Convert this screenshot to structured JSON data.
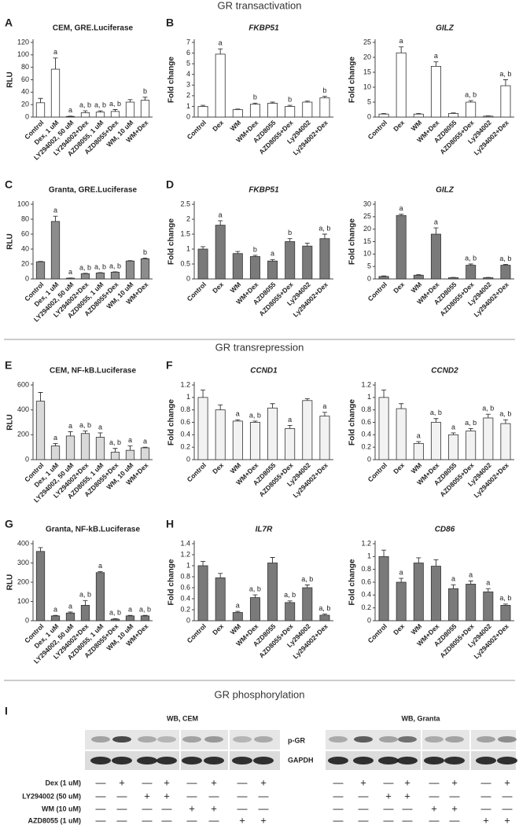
{
  "sections": [
    "GR transactivation",
    "GR transrepression",
    "GR phosphorylation"
  ],
  "chart_data": [
    {
      "type": "bar",
      "letter": "A",
      "title": "CEM, GRE.Luciferase",
      "title_italic": false,
      "ylabel": "RLU",
      "color": "#ffffff",
      "categories": [
        "Control",
        "Dex, 1 uM",
        "LY294002, 50 uM",
        "LY294002+Dex",
        "AZD8055, 1 uM",
        "AZD8055+Dex",
        "WM, 10 uM",
        "WM+Dex"
      ],
      "values": [
        23,
        77,
        1,
        7,
        8,
        9,
        24,
        27
      ],
      "errors": [
        7,
        18,
        0.5,
        3,
        2,
        3,
        4,
        5
      ],
      "annotations": [
        null,
        "a",
        "a",
        "a, b",
        "a, b",
        "a, b",
        null,
        "b"
      ],
      "ylim": [
        0,
        120
      ],
      "yticks": [
        0,
        20,
        40,
        60,
        80,
        100,
        120
      ]
    },
    {
      "type": "bar",
      "letter": "B",
      "title": "FKBP51",
      "title_italic": true,
      "ylabel": "Fold change",
      "color": "#ffffff",
      "categories": [
        "Control",
        "Dex",
        "WM",
        "WM+Dex",
        "AZD8055",
        "AZD8055+Dex",
        "Ly294002",
        "Ly294002+Dex"
      ],
      "values": [
        1,
        5.9,
        0.7,
        1.2,
        1.3,
        1,
        1.4,
        1.8
      ],
      "errors": [
        0.1,
        0.5,
        0.05,
        0.1,
        0.1,
        0.1,
        0.1,
        0.15
      ],
      "annotations": [
        null,
        "a",
        null,
        "b",
        null,
        "b",
        null,
        "b"
      ],
      "ylim": [
        0,
        7
      ],
      "yticks": [
        0,
        1,
        2,
        3,
        4,
        5,
        6,
        7
      ]
    },
    {
      "type": "bar",
      "letter": null,
      "title": "GILZ",
      "title_italic": true,
      "ylabel": "Fold change",
      "color": "#ffffff",
      "categories": [
        "Control",
        "Dex",
        "WM",
        "WM+Dex",
        "AZD8055",
        "AZD8055+Dex",
        "Ly294002",
        "Ly294002+Dex"
      ],
      "values": [
        1,
        21.5,
        1,
        17,
        1.2,
        5,
        0.3,
        10.5
      ],
      "errors": [
        0.2,
        2,
        0.2,
        1.5,
        0.2,
        0.5,
        0.1,
        2
      ],
      "annotations": [
        null,
        "a",
        null,
        "a",
        null,
        "a, b",
        null,
        "a, b"
      ],
      "ylim": [
        0,
        25
      ],
      "yticks": [
        0,
        5,
        10,
        15,
        20,
        25
      ]
    },
    {
      "type": "bar",
      "letter": "C",
      "title": "Granta, GRE.Luciferase",
      "title_italic": false,
      "ylabel": "RLU",
      "color": "#8c8c8c",
      "categories": [
        "Control",
        "Dex, 1 uM",
        "LY294002, 50 uM",
        "LY294002+Dex",
        "AZD8055, 1 uM",
        "AZD8055+Dex",
        "WM, 10 uM",
        "WM+Dex"
      ],
      "values": [
        23,
        77,
        1,
        7,
        8,
        9,
        24,
        27
      ],
      "errors": [
        0.5,
        7,
        0.3,
        0.5,
        0.5,
        0.5,
        0.5,
        1
      ],
      "annotations": [
        null,
        "a",
        "a",
        "a, b",
        "a, b",
        "a, b",
        null,
        "b"
      ],
      "ylim": [
        0,
        100
      ],
      "yticks": [
        0,
        20,
        40,
        60,
        80,
        100
      ]
    },
    {
      "type": "bar",
      "letter": "D",
      "title": "FKBP51",
      "title_italic": true,
      "ylabel": "Fold change",
      "color": "#7a7a7a",
      "categories": [
        "Control",
        "Dex",
        "WM",
        "WM+Dex",
        "AZD8055",
        "AZD8055+Dex",
        "Ly294002",
        "Ly294002+Dex"
      ],
      "values": [
        1,
        1.8,
        0.85,
        0.75,
        0.6,
        1.25,
        1.1,
        1.35
      ],
      "errors": [
        0.08,
        0.15,
        0.07,
        0.04,
        0.05,
        0.1,
        0.1,
        0.15
      ],
      "annotations": [
        null,
        "a",
        null,
        "b",
        "a",
        "b",
        null,
        "a, b"
      ],
      "ylim": [
        0,
        2.5
      ],
      "yticks": [
        0,
        0.5,
        1,
        1.5,
        2,
        2.5
      ]
    },
    {
      "type": "bar",
      "letter": null,
      "title": "GILZ",
      "title_italic": true,
      "ylabel": "Fold change",
      "color": "#7a7a7a",
      "categories": [
        "Control",
        "Dex",
        "WM",
        "WM+Dex",
        "AZD8055",
        "AZD8055+Dex",
        "Ly294002",
        "Ly294002+Dex"
      ],
      "values": [
        1,
        25.5,
        1.5,
        18,
        0.5,
        5.5,
        0.5,
        5.5
      ],
      "errors": [
        0.2,
        0.5,
        0.2,
        2.5,
        0.1,
        0.5,
        0.1,
        0.3
      ],
      "annotations": [
        null,
        "a",
        null,
        "a",
        null,
        "a, b",
        null,
        "a, b"
      ],
      "ylim": [
        0,
        30
      ],
      "yticks": [
        0,
        5,
        10,
        15,
        20,
        25,
        30
      ]
    },
    {
      "type": "bar",
      "letter": "E",
      "title": "CEM, NF-kB.Luciferase",
      "title_italic": false,
      "ylabel": "RLU",
      "color": "#d9d9d9",
      "categories": [
        "Control",
        "Dex, 1 uM",
        "LY294002, 50 uM",
        "LY294002+Dex",
        "AZD8055, 1 uM",
        "AZD8055+Dex",
        "WM, 10 uM",
        "WM+Dex"
      ],
      "values": [
        470,
        110,
        190,
        210,
        180,
        60,
        75,
        95
      ],
      "errors": [
        70,
        20,
        35,
        20,
        35,
        30,
        35,
        5
      ],
      "annotations": [
        null,
        "a",
        "a",
        "a, b",
        "a",
        "a, b",
        "a",
        "a"
      ],
      "ylim": [
        0,
        600
      ],
      "yticks": [
        0,
        200,
        400,
        600
      ]
    },
    {
      "type": "bar",
      "letter": "F",
      "title": "CCND1",
      "title_italic": true,
      "ylabel": "Fold change",
      "color": "#f2f2f2",
      "categories": [
        "Control",
        "Dex",
        "WM",
        "WM+Dex",
        "AZD8055",
        "AZD8055+Dex",
        "Ly294002",
        "Ly294002+Dex"
      ],
      "values": [
        1,
        0.8,
        0.62,
        0.6,
        0.83,
        0.5,
        0.95,
        0.7
      ],
      "errors": [
        0.12,
        0.08,
        0.02,
        0.02,
        0.07,
        0.05,
        0.03,
        0.06
      ],
      "annotations": [
        null,
        null,
        "a",
        "a, b",
        null,
        "a",
        null,
        "a"
      ],
      "ylim": [
        0,
        1.2
      ],
      "yticks": [
        0,
        0.2,
        0.4,
        0.6,
        0.8,
        1,
        1.2
      ]
    },
    {
      "type": "bar",
      "letter": null,
      "title": "CCND2",
      "title_italic": true,
      "ylabel": "Fold change",
      "color": "#f2f2f2",
      "categories": [
        "Control",
        "Dex",
        "WM",
        "WM+Dex",
        "AZD8055",
        "AZD8055+Dex",
        "Ly294002",
        "Ly294002+Dex"
      ],
      "values": [
        1,
        0.82,
        0.26,
        0.6,
        0.4,
        0.46,
        0.67,
        0.58
      ],
      "errors": [
        0.12,
        0.08,
        0.03,
        0.06,
        0.03,
        0.04,
        0.06,
        0.06
      ],
      "annotations": [
        null,
        null,
        "a",
        "a, b",
        "a",
        "a, b",
        "a, b",
        "a, b"
      ],
      "ylim": [
        0,
        1.2
      ],
      "yticks": [
        0,
        0.2,
        0.4,
        0.6,
        0.8,
        1,
        1.2
      ]
    },
    {
      "type": "bar",
      "letter": "G",
      "title": "Granta, NF-kB.Luciferase",
      "title_italic": false,
      "ylabel": "RLU",
      "color": "#7a7a7a",
      "categories": [
        "Control",
        "Dex, 1 uM",
        "LY294002, 50 uM",
        "LY294002+Dex",
        "AZD8055, 1 uM",
        "AZD8055+Dex",
        "WM, 10 uM",
        "WM+Dex"
      ],
      "values": [
        360,
        25,
        40,
        80,
        250,
        8,
        25,
        25
      ],
      "errors": [
        20,
        3,
        5,
        25,
        5,
        3,
        3,
        3
      ],
      "annotations": [
        null,
        "a",
        "a",
        "a, b",
        "a",
        "a, b",
        "a",
        "a, b"
      ],
      "ylim": [
        0,
        400
      ],
      "yticks": [
        0,
        100,
        200,
        300,
        400
      ]
    },
    {
      "type": "bar",
      "letter": "H",
      "title": "IL7R",
      "title_italic": true,
      "ylabel": "Fold change",
      "color": "#7a7a7a",
      "categories": [
        "Control",
        "Dex",
        "WM",
        "WM+Dex",
        "AZD8055",
        "AZD8055+Dex",
        "Ly294002",
        "Ly294002+Dex"
      ],
      "values": [
        1,
        0.78,
        0.15,
        0.42,
        1.05,
        0.33,
        0.6,
        0.1
      ],
      "errors": [
        0.08,
        0.08,
        0.02,
        0.05,
        0.1,
        0.03,
        0.05,
        0.02
      ],
      "annotations": [
        null,
        null,
        "a",
        "a, b",
        null,
        "a, b",
        "a, b",
        "a, b"
      ],
      "ylim": [
        0,
        1.4
      ],
      "yticks": [
        0,
        0.2,
        0.4,
        0.6,
        0.8,
        1,
        1.2,
        1.4
      ]
    },
    {
      "type": "bar",
      "letter": null,
      "title": "CD86",
      "title_italic": true,
      "ylabel": "Fold change",
      "color": "#7a7a7a",
      "categories": [
        "Control",
        "Dex",
        "WM",
        "WM+Dex",
        "AZD8055",
        "AZD8055+Dex",
        "Ly294002",
        "Ly294002+Dex"
      ],
      "values": [
        1,
        0.6,
        0.9,
        0.85,
        0.5,
        0.57,
        0.45,
        0.24
      ],
      "errors": [
        0.1,
        0.06,
        0.08,
        0.1,
        0.06,
        0.05,
        0.05,
        0.02
      ],
      "annotations": [
        null,
        "a",
        null,
        null,
        "a",
        "a",
        "a",
        "a, b"
      ],
      "ylim": [
        0,
        1.2
      ],
      "yticks": [
        0,
        0.2,
        0.4,
        0.6,
        0.8,
        1,
        1.2
      ]
    }
  ],
  "blot": {
    "letter": "I",
    "panels": [
      "WB, CEM",
      "WB, Granta"
    ],
    "bands": [
      "p-GR",
      "GAPDH"
    ],
    "treatments": [
      {
        "label": "Dex (1 uM)",
        "signs": [
          "—",
          "+",
          "—",
          "+",
          "—",
          "+",
          "—",
          "+"
        ]
      },
      {
        "label": "LY294002 (50 uM)",
        "signs": [
          "—",
          "—",
          "+",
          "+",
          "—",
          "—",
          "—",
          "—"
        ]
      },
      {
        "label": "WM (10 uM)",
        "signs": [
          "—",
          "—",
          "—",
          "—",
          "+",
          "+",
          "—",
          "—"
        ]
      },
      {
        "label": "AZD8055 (1 uM)",
        "signs": [
          "—",
          "—",
          "—",
          "—",
          "—",
          "—",
          "+",
          "+"
        ]
      }
    ]
  }
}
